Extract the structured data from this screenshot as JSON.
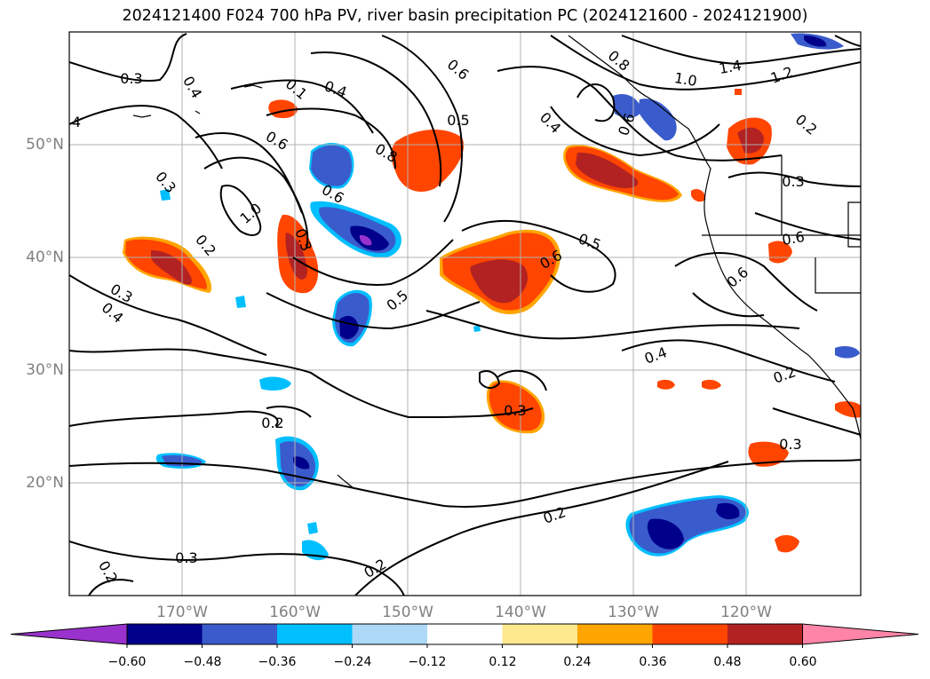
{
  "title": "2024121400 F024 700 hPa PV, river basin precipitation PC (2024121600 - 2024121900)",
  "map": {
    "lat_labels": [
      {
        "text": "50°N",
        "lat": 50
      },
      {
        "text": "40°N",
        "lat": 40
      },
      {
        "text": "30°N",
        "lat": 30
      },
      {
        "text": "20°N",
        "lat": 20
      }
    ],
    "lon_labels": [
      {
        "text": "170°W",
        "lon": -170
      },
      {
        "text": "160°W",
        "lon": -160
      },
      {
        "text": "150°W",
        "lon": -150
      },
      {
        "text": "140°W",
        "lon": -140
      },
      {
        "text": "130°W",
        "lon": -130
      },
      {
        "text": "120°W",
        "lon": -120
      }
    ],
    "contour_labels": [
      "0.3",
      "0.4",
      "0.1",
      "0.4",
      "0.6",
      "0.8",
      "1.4",
      "1.2",
      "1.0",
      "0.5",
      "0.4",
      "0.6",
      "0.8",
      "1.0",
      "0.6",
      "0.3",
      "0.3",
      "0.6",
      "0.4",
      "0.2",
      "0.3",
      "0.5",
      "0.5",
      "0.6",
      "0.3",
      "0.6",
      "0.6",
      "0.3",
      "0.4",
      "0.2",
      "0.3",
      "0.2",
      "0.3",
      "0.2",
      "0.2",
      "0.2",
      "0.2",
      "4"
    ],
    "colors": {
      "land": "#000000",
      "grid": "#b0b0b0",
      "contour": "#000000"
    }
  },
  "colorbar": {
    "ticks": [
      "−0.60",
      "−0.48",
      "−0.36",
      "−0.24",
      "−0.12",
      "0.12",
      "0.24",
      "0.36",
      "0.48",
      "0.60"
    ],
    "colors": [
      "#9932cc",
      "#00008b",
      "#3a5bcc",
      "#00bfff",
      "#add8f6",
      "#ffffff",
      "#ffe98f",
      "#ffa500",
      "#ff4500",
      "#b22222",
      "#ff85a8"
    ]
  }
}
